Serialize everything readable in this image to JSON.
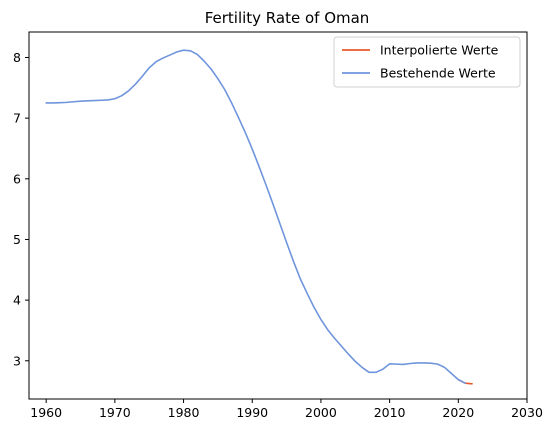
{
  "chart_data": {
    "type": "line",
    "title": "Fertility Rate of Oman",
    "xlabel": "",
    "ylabel": "",
    "xlim": [
      1957.5,
      2030
    ],
    "ylim": [
      2.37,
      8.42
    ],
    "xticks": [
      1960,
      1970,
      1980,
      1990,
      2000,
      2010,
      2020,
      2030
    ],
    "yticks": [
      3,
      4,
      5,
      6,
      7,
      8
    ],
    "grid": false,
    "legend_position": "top-right",
    "series": [
      {
        "name": "Interpolierte Werte",
        "color": "#e8582a",
        "x": [
          2020,
          2021,
          2022
        ],
        "y": [
          2.69,
          2.63,
          2.62
        ]
      },
      {
        "name": "Bestehende Werte",
        "color": "#6f95dc",
        "x": [
          1960,
          1961,
          1962,
          1963,
          1964,
          1965,
          1966,
          1967,
          1968,
          1969,
          1970,
          1971,
          1972,
          1973,
          1974,
          1975,
          1976,
          1977,
          1978,
          1979,
          1980,
          1981,
          1982,
          1983,
          1984,
          1985,
          1986,
          1987,
          1988,
          1989,
          1990,
          1991,
          1992,
          1993,
          1994,
          1995,
          1996,
          1997,
          1998,
          1999,
          2000,
          2001,
          2002,
          2003,
          2004,
          2005,
          2006,
          2007,
          2008,
          2009,
          2010,
          2011,
          2012,
          2013,
          2014,
          2015,
          2016,
          2017,
          2018,
          2019,
          2020,
          2021
        ],
        "y": [
          7.25,
          7.25,
          7.255,
          7.26,
          7.27,
          7.28,
          7.285,
          7.29,
          7.295,
          7.3,
          7.32,
          7.37,
          7.45,
          7.56,
          7.69,
          7.83,
          7.93,
          7.99,
          8.04,
          8.09,
          8.12,
          8.11,
          8.05,
          7.94,
          7.81,
          7.65,
          7.47,
          7.25,
          7.01,
          6.76,
          6.49,
          6.2,
          5.9,
          5.59,
          5.27,
          4.95,
          4.64,
          4.35,
          4.11,
          3.88,
          3.68,
          3.51,
          3.37,
          3.24,
          3.11,
          2.99,
          2.89,
          2.81,
          2.81,
          2.86,
          2.95,
          2.945,
          2.94,
          2.955,
          2.965,
          2.965,
          2.96,
          2.945,
          2.89,
          2.79,
          2.69,
          2.63
        ]
      }
    ]
  }
}
